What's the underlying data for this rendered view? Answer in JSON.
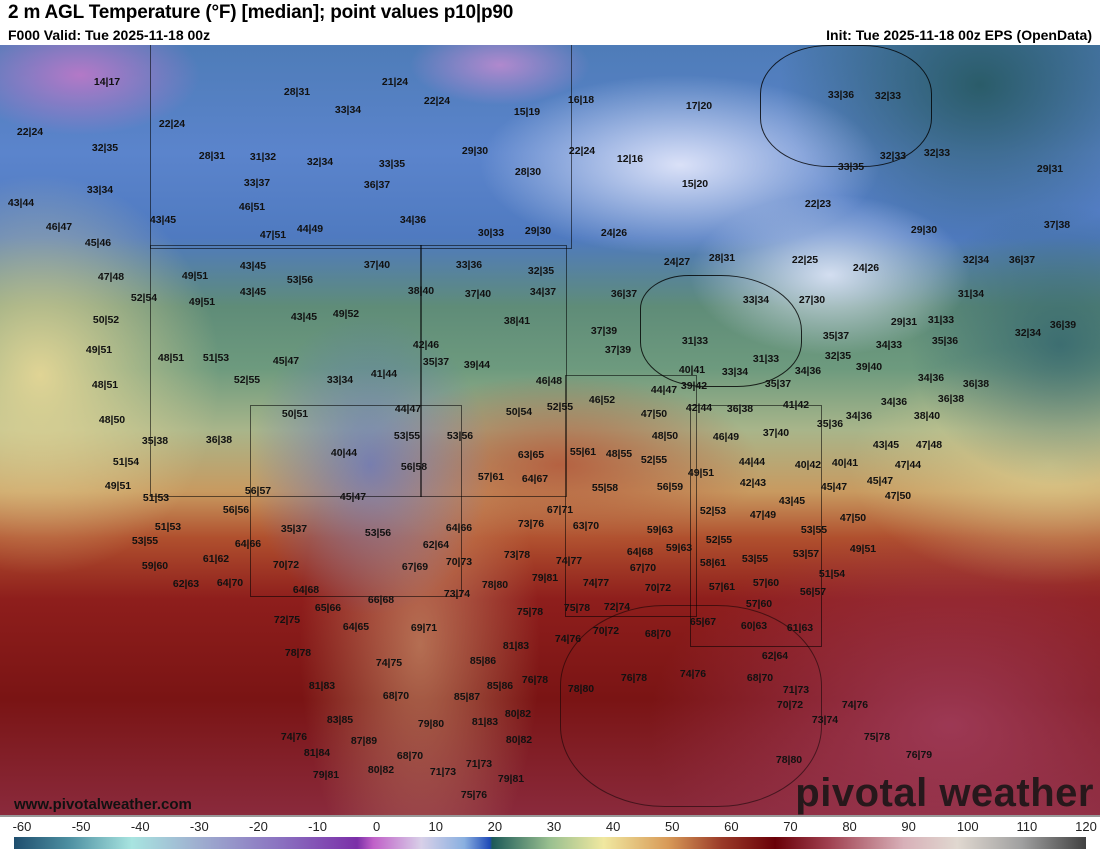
{
  "header": {
    "title": "2 m AGL Temperature (°F) [median]; point values p10|p90",
    "valid": "F000 Valid: Tue 2025-11-18 00z",
    "init": "Init: Tue 2025-11-18 00z EPS (OpenData)"
  },
  "map": {
    "website": "www.pivotalweather.com",
    "watermark": "pivotal weather",
    "point_values": [
      "14|17",
      "22|24",
      "28|31",
      "21|24",
      "22|24",
      "33|34",
      "15|19",
      "16|18",
      "17|20",
      "33|36",
      "32|33",
      "32|35",
      "22|24",
      "28|31",
      "31|32",
      "32|34",
      "33|35",
      "29|30",
      "22|24",
      "12|16",
      "28|30",
      "15|20",
      "33|35",
      "32|33",
      "32|33",
      "29|31",
      "33|34",
      "33|37",
      "36|37",
      "43|44",
      "34|36",
      "43|45",
      "46|51",
      "46|47",
      "44|49",
      "47|51",
      "30|33",
      "29|30",
      "24|26",
      "22|23",
      "29|30",
      "37|38",
      "45|46",
      "24|27",
      "28|31",
      "37|40",
      "33|36",
      "32|35",
      "22|25",
      "24|26",
      "32|34",
      "36|37",
      "47|48",
      "49|51",
      "53|56",
      "52|54",
      "43|45",
      "38|40",
      "37|40",
      "34|37",
      "36|37",
      "33|34",
      "27|30",
      "31|34",
      "49|51",
      "49|52",
      "43|45",
      "50|52",
      "38|41",
      "29|31",
      "31|33",
      "32|34",
      "36|39",
      "37|39",
      "35|37",
      "42|46",
      "35|37",
      "31|33",
      "34|33",
      "35|36",
      "49|51",
      "37|39",
      "48|51",
      "51|53",
      "43|45",
      "45|47",
      "31|33",
      "39|44",
      "32|35",
      "40|41",
      "33|34",
      "34|36",
      "39|40",
      "48|51",
      "52|55",
      "33|34",
      "41|44",
      "35|37",
      "46|48",
      "34|36",
      "36|38",
      "44|47",
      "39|42",
      "42|44",
      "46|52",
      "52|55",
      "44|47",
      "50|51",
      "50|54",
      "47|50",
      "36|38",
      "41|42",
      "34|36",
      "36|38",
      "48|50",
      "34|36",
      "38|40",
      "35|38",
      "36|38",
      "53|55",
      "53|56",
      "48|50",
      "46|49",
      "37|40",
      "35|36",
      "43|45",
      "47|48",
      "55|61",
      "48|55",
      "40|44",
      "44|44",
      "63|65",
      "51|54",
      "52|55",
      "40|42",
      "40|41",
      "47|44",
      "56|58",
      "42|43",
      "49|51",
      "57|61",
      "64|67",
      "49|51",
      "55|58",
      "56|59",
      "45|47",
      "45|47",
      "56|57",
      "45|47",
      "51|53",
      "47|50",
      "43|45",
      "52|53",
      "67|71",
      "47|49",
      "56|56",
      "47|50",
      "73|76",
      "63|70",
      "51|53",
      "64|66",
      "59|63",
      "35|37",
      "53|56",
      "53|55",
      "53|55",
      "64|66",
      "62|64",
      "52|55",
      "59|63",
      "49|51",
      "59|60",
      "73|78",
      "61|62",
      "64|68",
      "53|57",
      "70|72",
      "67|69",
      "70|73",
      "74|77",
      "53|55",
      "58|61",
      "62|63",
      "64|70",
      "79|81",
      "51|54",
      "78|80",
      "67|70",
      "57|60",
      "64|68",
      "74|77",
      "73|74",
      "57|61",
      "56|57",
      "70|72",
      "66|68",
      "65|66",
      "57|60",
      "75|78",
      "75|78",
      "72|74",
      "72|75",
      "64|65",
      "69|71",
      "65|67",
      "60|63",
      "61|63",
      "70|72",
      "68|70",
      "74|76",
      "81|83",
      "78|78",
      "62|64",
      "85|86",
      "74|75",
      "76|78",
      "78|80",
      "76|78",
      "74|76",
      "85|86",
      "81|83",
      "68|70",
      "71|73",
      "68|70",
      "85|87",
      "74|76",
      "70|72",
      "80|82",
      "83|85",
      "81|83",
      "79|80",
      "73|74",
      "74|76",
      "75|78",
      "87|89",
      "80|82",
      "81|84",
      "68|70",
      "76|79",
      "71|73",
      "79|81",
      "80|82",
      "71|73",
      "79|81",
      "78|80",
      "75|76"
    ]
  },
  "colorbar": {
    "ticks": [
      "-60",
      "-50",
      "-40",
      "-30",
      "-20",
      "-10",
      "0",
      "10",
      "20",
      "30",
      "40",
      "50",
      "60",
      "70",
      "80",
      "90",
      "100",
      "110",
      "120"
    ],
    "range": [
      -60,
      120
    ]
  }
}
